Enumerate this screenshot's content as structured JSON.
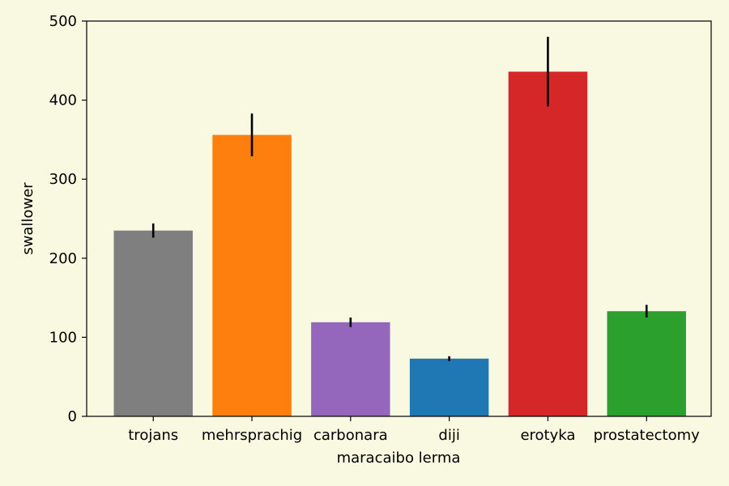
{
  "chart_data": {
    "type": "bar",
    "title": "",
    "xlabel": "maracaibo lerma",
    "ylabel": "swallower",
    "ylim": [
      0,
      500
    ],
    "yticks": [
      0,
      100,
      200,
      300,
      400,
      500
    ],
    "grid": false,
    "categories": [
      "trojans",
      "mehrsprachig",
      "carbonara",
      "diji",
      "erotyka",
      "prostatectomy"
    ],
    "values": [
      235,
      356,
      119,
      73,
      436,
      133
    ],
    "errors": [
      9,
      27,
      6,
      3,
      44,
      8
    ],
    "colors": [
      "#7f7f7f",
      "#ff7f0e",
      "#9467bd",
      "#1f77b4",
      "#d62728",
      "#2ca02c"
    ],
    "background": "#f9f8e1"
  }
}
